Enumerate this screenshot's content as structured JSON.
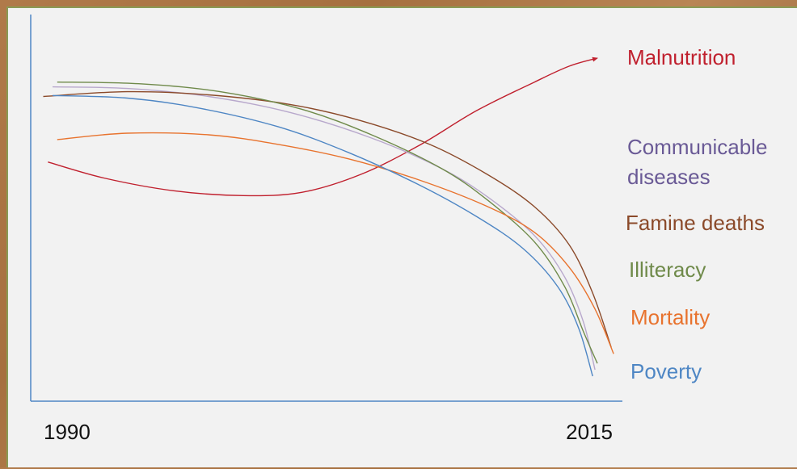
{
  "chart_data": {
    "type": "line",
    "x_tick_labels": [
      "1990",
      "2015"
    ],
    "xlim": [
      1990,
      2015
    ],
    "ylim": [
      0,
      100
    ],
    "grid": false,
    "legend": "right",
    "series": [
      {
        "name": "Malnutrition",
        "color": "#c0202e",
        "arrow": true,
        "points": [
          [
            1990.6,
            67
          ],
          [
            1993,
            62
          ],
          [
            1996,
            58
          ],
          [
            1999,
            56.5
          ],
          [
            2001.5,
            57.5
          ],
          [
            2004,
            63
          ],
          [
            2006.5,
            72
          ],
          [
            2009,
            83
          ],
          [
            2011.5,
            92
          ],
          [
            2013,
            97
          ],
          [
            2014.2,
            99.5
          ]
        ]
      },
      {
        "name": "Communicable diseases",
        "color": "#b8a8cc",
        "points": [
          [
            1990.8,
            90.5
          ],
          [
            1994,
            90
          ],
          [
            1997.5,
            87.5
          ],
          [
            2001,
            82.5
          ],
          [
            2004.5,
            74.5
          ],
          [
            2007.5,
            65
          ],
          [
            2009.5,
            56
          ],
          [
            2011.5,
            44
          ],
          [
            2012.8,
            31
          ],
          [
            2013.6,
            17
          ],
          [
            2014.1,
            2
          ]
        ]
      },
      {
        "name": "Famine deaths",
        "color": "#8b4a2a",
        "points": [
          [
            1990.4,
            87.5
          ],
          [
            1994,
            89
          ],
          [
            1997.5,
            88
          ],
          [
            2001,
            85
          ],
          [
            2004,
            80
          ],
          [
            2007,
            72.5
          ],
          [
            2009.5,
            63
          ],
          [
            2011.5,
            53
          ],
          [
            2013,
            41
          ],
          [
            2014,
            26
          ],
          [
            2014.8,
            9
          ]
        ]
      },
      {
        "name": "Illiteracy",
        "color": "#6f8a4a",
        "points": [
          [
            1991,
            92
          ],
          [
            1994.5,
            91.5
          ],
          [
            1998,
            89
          ],
          [
            2001.5,
            83.5
          ],
          [
            2004.5,
            75.5
          ],
          [
            2007.5,
            65
          ],
          [
            2009.5,
            55
          ],
          [
            2011.5,
            42
          ],
          [
            2012.8,
            28
          ],
          [
            2013.6,
            14
          ],
          [
            2014.2,
            4
          ]
        ]
      },
      {
        "name": "Mortality",
        "color": "#e8732e",
        "points": [
          [
            1991,
            74
          ],
          [
            1994,
            76
          ],
          [
            1997.5,
            75.5
          ],
          [
            2000.5,
            72.5
          ],
          [
            2003.5,
            68
          ],
          [
            2006.5,
            61.5
          ],
          [
            2009.5,
            53
          ],
          [
            2011.5,
            45
          ],
          [
            2013,
            34
          ],
          [
            2014.1,
            21
          ],
          [
            2014.9,
            7
          ]
        ]
      },
      {
        "name": "Poverty",
        "color": "#4e86c4",
        "points": [
          [
            1990.8,
            87.8
          ],
          [
            1994,
            87
          ],
          [
            1997,
            84
          ],
          [
            2000.5,
            78
          ],
          [
            2003.5,
            70
          ],
          [
            2006.5,
            60
          ],
          [
            2009,
            50
          ],
          [
            2011,
            40
          ],
          [
            2012.5,
            28
          ],
          [
            2013.4,
            15
          ],
          [
            2014,
            0
          ]
        ]
      }
    ]
  }
}
